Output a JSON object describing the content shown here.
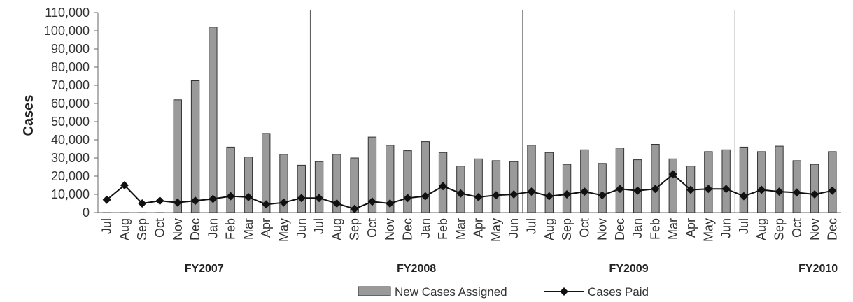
{
  "chart_data": {
    "type": "bar",
    "title": "",
    "ylabel": "Cases",
    "xlabel": "",
    "ylim": [
      0,
      110000
    ],
    "yticks": [
      "0",
      "10,000",
      "20,000",
      "30,000",
      "40,000",
      "50,000",
      "60,000",
      "70,000",
      "80,000",
      "90,000",
      "100,000",
      "110,000"
    ],
    "categories": [
      "Jul",
      "Aug",
      "Sep",
      "Oct",
      "Nov",
      "Dec",
      "Jan",
      "Feb",
      "Mar",
      "Apr",
      "May",
      "Jun",
      "Jul",
      "Aug",
      "Sep",
      "Oct",
      "Nov",
      "Dec",
      "Jan",
      "Feb",
      "Mar",
      "Apr",
      "May",
      "Jun",
      "Jul",
      "Aug",
      "Sep",
      "Oct",
      "Nov",
      "Dec",
      "Jan",
      "Feb",
      "Mar",
      "Apr",
      "May",
      "Jun",
      "Jul",
      "Aug",
      "Sep",
      "Oct",
      "Nov",
      "Dec"
    ],
    "groups": [
      {
        "label": "FY2007",
        "count": 12
      },
      {
        "label": "FY2008",
        "count": 12
      },
      {
        "label": "FY2009",
        "count": 12
      },
      {
        "label": "FY2010",
        "count": 6
      }
    ],
    "series": [
      {
        "name": "New Cases Assigned",
        "kind": "bar",
        "color": "#9a9a9a",
        "values": [
          0,
          0,
          0,
          0,
          62000,
          72500,
          102000,
          36000,
          30500,
          43500,
          32000,
          26000,
          28000,
          32000,
          30000,
          41500,
          37000,
          34000,
          39000,
          33000,
          25500,
          29500,
          28500,
          28000,
          37000,
          33000,
          26500,
          34500,
          27000,
          35500,
          29000,
          37500,
          29500,
          25500,
          33500,
          34500,
          36000,
          33500,
          36500,
          28500,
          26500,
          33500
        ]
      },
      {
        "name": "Cases Paid",
        "kind": "line",
        "color": "#111111",
        "values": [
          7000,
          15000,
          5000,
          6500,
          5500,
          6500,
          7500,
          9000,
          8500,
          4500,
          5500,
          8000,
          8000,
          5000,
          2000,
          6000,
          5000,
          8000,
          9000,
          14500,
          10500,
          8500,
          9500,
          10000,
          11500,
          9000,
          10000,
          11500,
          9500,
          13000,
          12000,
          13000,
          21000,
          12500,
          13000,
          13000,
          9000,
          12500,
          11500,
          11000,
          10000,
          12000
        ]
      }
    ],
    "legend": {
      "placement": "bottom",
      "items": [
        "New Cases Assigned",
        "Cases Paid"
      ]
    }
  }
}
